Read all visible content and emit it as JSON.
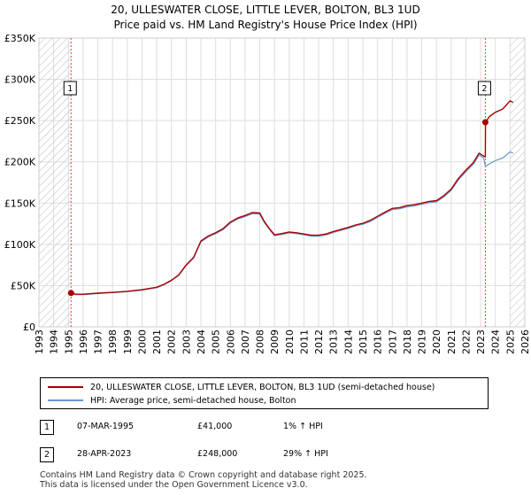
{
  "chart_data": {
    "type": "line",
    "title": "20, ULLESWATER CLOSE, LITTLE LEVER, BOLTON, BL3 1UD",
    "subtitle": "Price paid vs. HM Land Registry's House Price Index (HPI)",
    "xlabel": "",
    "ylabel": "",
    "xlim": [
      1993,
      2026
    ],
    "ylim": [
      0,
      350000
    ],
    "x_ticks": [
      1993,
      1994,
      1995,
      1996,
      1997,
      1998,
      1999,
      2000,
      2001,
      2002,
      2003,
      2004,
      2005,
      2006,
      2007,
      2008,
      2009,
      2010,
      2011,
      2012,
      2013,
      2014,
      2015,
      2016,
      2017,
      2018,
      2019,
      2020,
      2021,
      2022,
      2023,
      2024,
      2025,
      2026
    ],
    "y_ticks": [
      0,
      50000,
      100000,
      150000,
      200000,
      250000,
      300000,
      350000
    ],
    "y_tick_labels": [
      "£0",
      "£50K",
      "£100K",
      "£150K",
      "£200K",
      "£250K",
      "£300K",
      "£350K"
    ],
    "grid": true,
    "hatched_regions": [
      [
        1993,
        1995.18
      ],
      [
        2025.0,
        2026
      ]
    ],
    "series": [
      {
        "name": "20, ULLESWATER CLOSE, LITTLE LEVER, BOLTON, BL3 1UD (semi-detached house)",
        "color": "#aa0000",
        "x": [
          1995.18,
          1995.5,
          1996,
          1997,
          1998,
          1999,
          2000,
          2000.5,
          2001,
          2001.5,
          2002,
          2002.5,
          2003,
          2003.5,
          2004,
          2004.5,
          2005,
          2005.5,
          2006,
          2006.5,
          2007,
          2007.5,
          2008,
          2008.3,
          2008.7,
          2009,
          2009.5,
          2010,
          2010.5,
          2011,
          2011.5,
          2012,
          2012.5,
          2013,
          2013.5,
          2014,
          2014.5,
          2015,
          2015.5,
          2016,
          2016.5,
          2017,
          2017.5,
          2018,
          2018.5,
          2019,
          2019.5,
          2020,
          2020.5,
          2021,
          2021.5,
          2022,
          2022.5,
          2022.9,
          2023.2,
          2023.32,
          2023.33,
          2023.6,
          2024,
          2024.5,
          2025,
          2025.2
        ],
        "values": [
          41000,
          39500,
          39500,
          40800,
          41800,
          43000,
          45000,
          46500,
          48000,
          51500,
          56500,
          63000,
          75000,
          84000,
          104000,
          110000,
          114000,
          119000,
          127000,
          132000,
          135000,
          138500,
          138000,
          128000,
          118000,
          111500,
          113000,
          115000,
          114000,
          112500,
          111000,
          111000,
          112500,
          115500,
          118000,
          120500,
          123500,
          125500,
          129000,
          134000,
          139000,
          143500,
          144500,
          147000,
          148000,
          150000,
          152000,
          153000,
          159000,
          167000,
          180000,
          190000,
          199000,
          210500,
          207000,
          206000,
          248000,
          255000,
          260000,
          264000,
          274000,
          272000
        ]
      },
      {
        "name": "HPI: Average price, semi-detached house, Bolton",
        "color": "#6699cc",
        "x": [
          1995.18,
          1995.5,
          1996,
          1997,
          1998,
          1999,
          2000,
          2000.5,
          2001,
          2001.5,
          2002,
          2002.5,
          2003,
          2003.5,
          2004,
          2004.5,
          2005,
          2005.5,
          2006,
          2006.5,
          2007,
          2007.5,
          2008,
          2008.3,
          2008.7,
          2009,
          2009.5,
          2010,
          2010.5,
          2011,
          2011.5,
          2012,
          2012.5,
          2013,
          2013.5,
          2014,
          2014.5,
          2015,
          2015.5,
          2016,
          2016.5,
          2017,
          2017.5,
          2018,
          2018.5,
          2019,
          2019.5,
          2020,
          2020.5,
          2021,
          2021.5,
          2022,
          2022.5,
          2022.9,
          2023.2,
          2023.32,
          2023.6,
          2024,
          2024.5,
          2025,
          2025.2
        ],
        "values": [
          40600,
          39100,
          39100,
          40400,
          41400,
          42600,
          44500,
          46000,
          47500,
          51000,
          56000,
          62400,
          74300,
          83200,
          103000,
          109000,
          112900,
          117800,
          125700,
          130700,
          133700,
          137100,
          136600,
          126700,
          116800,
          110400,
          111900,
          113900,
          112900,
          111400,
          109900,
          109900,
          111400,
          114400,
          116800,
          119300,
          122300,
          124300,
          127700,
          132700,
          137600,
          142100,
          143100,
          145500,
          146500,
          148500,
          150500,
          151500,
          157400,
          165300,
          178200,
          188100,
          197000,
          208400,
          204900,
          194500,
          197500,
          201500,
          204500,
          212000,
          210500
        ]
      }
    ],
    "sales": [
      {
        "marker": "1",
        "x": 1995.18,
        "price": 41000,
        "date": "07-MAR-1995",
        "price_label": "£41,000",
        "hpi_label": "1% ↑ HPI"
      },
      {
        "marker": "2",
        "x": 2023.32,
        "price": 248000,
        "date": "28-APR-2023",
        "price_label": "£248,000",
        "hpi_label": "29% ↑ HPI"
      }
    ]
  },
  "legend": {
    "series1_label": "20, ULLESWATER CLOSE, LITTLE LEVER, BOLTON, BL3 1UD (semi-detached house)",
    "series2_label": "HPI: Average price, semi-detached house, Bolton"
  },
  "footer": {
    "line1": "Contains HM Land Registry data © Crown copyright and database right 2025.",
    "line2": "This data is licensed under the Open Government Licence v3.0."
  },
  "colors": {
    "price_line": "#aa0000",
    "hpi_line": "#6699cc",
    "vline": "#dd4444",
    "grid": "#dddddd",
    "hatch": "#bbbbbb"
  }
}
